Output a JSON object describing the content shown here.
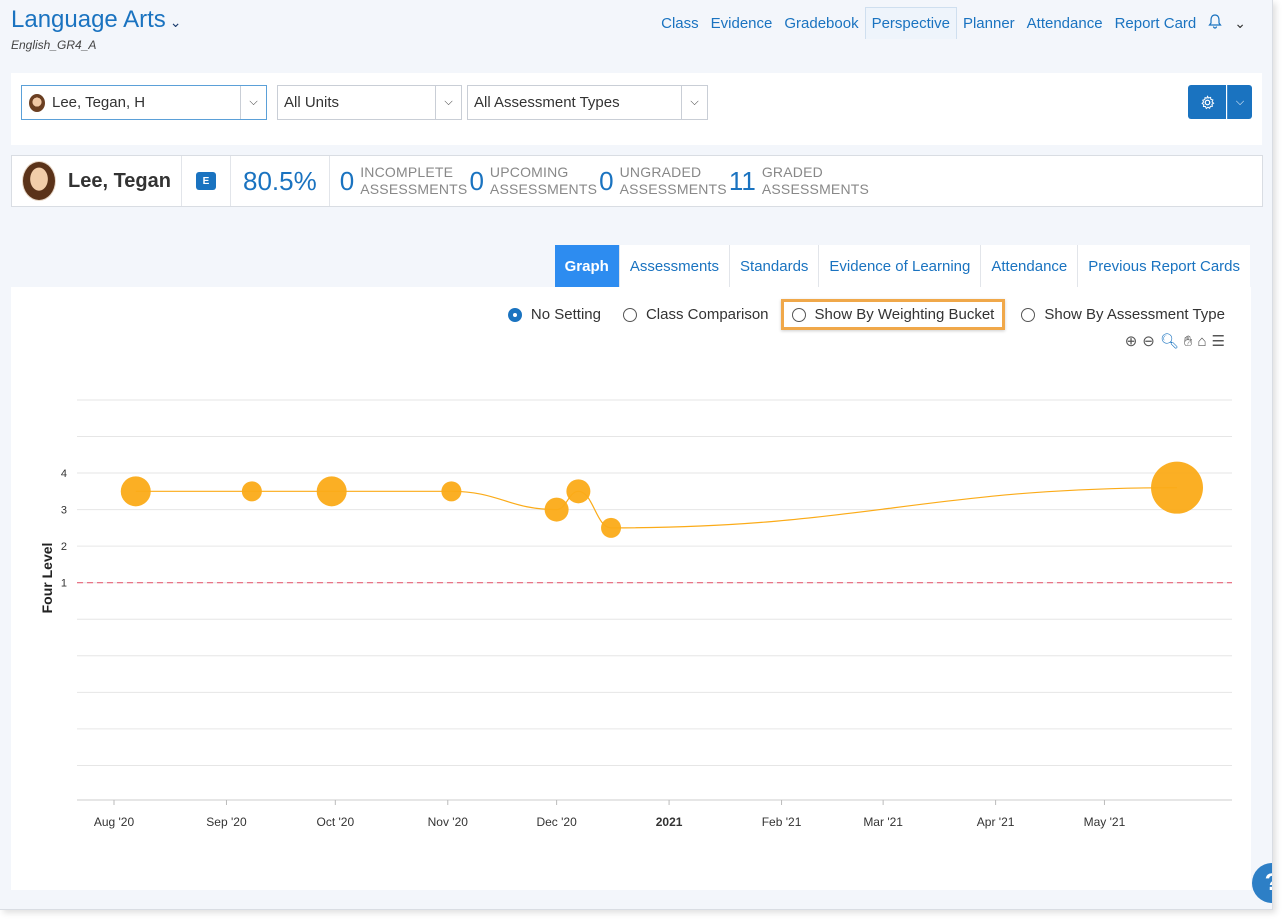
{
  "header": {
    "course_title": "Language Arts",
    "course_code": "English_GR4_A",
    "nav": [
      "Class",
      "Evidence",
      "Gradebook",
      "Perspective",
      "Planner",
      "Attendance",
      "Report Card"
    ],
    "active_nav": "Perspective"
  },
  "filters": {
    "student": "Lee, Tegan, H",
    "units": "All Units",
    "assessment_types": "All Assessment Types"
  },
  "summary": {
    "name": "Lee, Tegan",
    "grade_badge": "E",
    "percent": "80.5%",
    "stats": [
      {
        "count": "0",
        "label_1": "INCOMPLETE",
        "label_2": "ASSESSMENTS"
      },
      {
        "count": "0",
        "label_1": "UPCOMING",
        "label_2": "ASSESSMENTS"
      },
      {
        "count": "0",
        "label_1": "UNGRADED",
        "label_2": "ASSESSMENTS"
      },
      {
        "count": "11",
        "label_1": "GRADED",
        "label_2": "ASSESSMENTS"
      }
    ]
  },
  "tabs": [
    "Graph",
    "Assessments",
    "Standards",
    "Evidence of Learning",
    "Attendance",
    "Previous Report Cards"
  ],
  "active_tab": "Graph",
  "graph_options": {
    "no_setting": "No Setting",
    "class_comparison": "Class Comparison",
    "weighting_bucket": "Show By Weighting Bucket",
    "assessment_type": "Show By Assessment Type",
    "selected": "No Setting"
  },
  "colors": {
    "accent": "#1a73c0",
    "active_tab": "#2d8cf0",
    "point": "#fbab18",
    "threshold": "#e8657a",
    "highlight": "#f0a84a"
  },
  "chart_data": {
    "type": "scatter",
    "ylabel": "Four Level",
    "yticks": [
      1,
      2,
      3,
      4
    ],
    "ylim": [
      -5,
      6
    ],
    "threshold": 1,
    "x_ticks": [
      "Aug '20",
      "Sep '20",
      "Oct '20",
      "Nov '20",
      "Dec '20",
      "2021",
      "Feb '21",
      "Mar '21",
      "Apr '21",
      "May '21"
    ],
    "x_tick_days": [
      0,
      31,
      61,
      92,
      122,
      153,
      184,
      212,
      243,
      273
    ],
    "points": [
      {
        "day": 6,
        "y": 3.5,
        "size": "large"
      },
      {
        "day": 38,
        "y": 3.5,
        "size": "small"
      },
      {
        "day": 60,
        "y": 3.5,
        "size": "large"
      },
      {
        "day": 93,
        "y": 3.5,
        "size": "small"
      },
      {
        "day": 122,
        "y": 3.0,
        "size": "medium"
      },
      {
        "day": 128,
        "y": 3.5,
        "size": "medium"
      },
      {
        "day": 137,
        "y": 2.5,
        "size": "small"
      },
      {
        "day": 293,
        "y": 3.6,
        "size": "xlarge"
      }
    ],
    "grid": true
  }
}
